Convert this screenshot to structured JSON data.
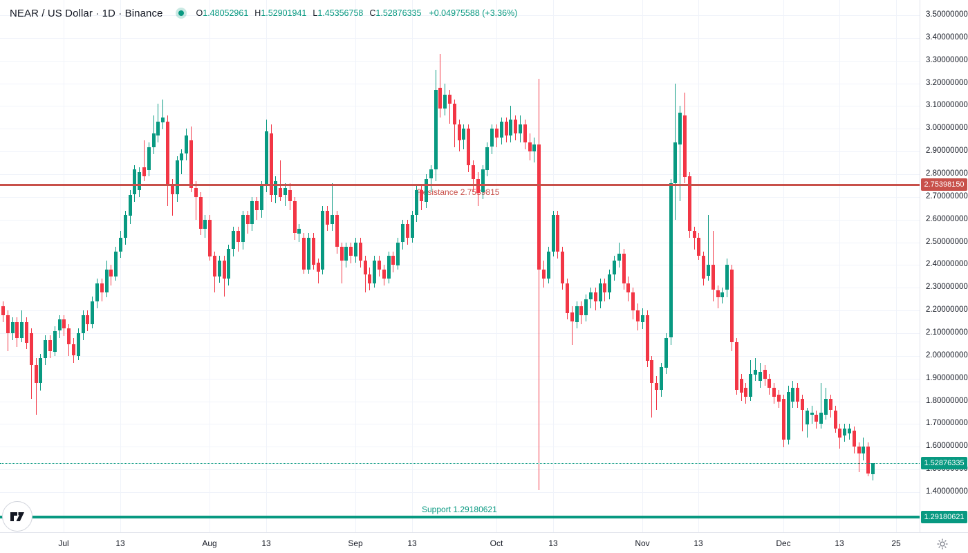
{
  "header": {
    "title": "NEAR / US Dollar · 1D · Binance",
    "ohlc": {
      "o_label": "O",
      "o": "1.48052961",
      "h_label": "H",
      "h": "1.52901941",
      "l_label": "L",
      "l": "1.45356758",
      "c_label": "C",
      "c": "1.52876335",
      "change": "+0.04975588 (+3.36%)"
    }
  },
  "colors": {
    "up": "#089981",
    "down": "#f23645",
    "resistance": "#c8504a",
    "support": "#089981",
    "last_price": "#089981",
    "grid": "#f0f3fa",
    "axis_text": "#131722",
    "icon_gray": "#787b86"
  },
  "chart_data": {
    "type": "candlestick",
    "symbol": "NEAR/USD",
    "interval": "1D",
    "price_axis": {
      "min": 1.4,
      "max": 3.5,
      "step": 0.1,
      "tick_labels": [
        "3.50000000",
        "3.40000000",
        "3.30000000",
        "3.20000000",
        "3.10000000",
        "3.00000000",
        "2.90000000",
        "2.80000000",
        "2.70000000",
        "2.60000000",
        "2.50000000",
        "2.40000000",
        "2.30000000",
        "2.20000000",
        "2.10000000",
        "2.00000000",
        "1.90000000",
        "1.80000000",
        "1.70000000",
        "1.60000000",
        "1.50000000",
        "1.40000000"
      ]
    },
    "time_axis": {
      "ticks": [
        {
          "label": "Jul",
          "idx": 13
        },
        {
          "label": "13",
          "idx": 25
        },
        {
          "label": "Aug",
          "idx": 44
        },
        {
          "label": "13",
          "idx": 56
        },
        {
          "label": "Sep",
          "idx": 75
        },
        {
          "label": "13",
          "idx": 87
        },
        {
          "label": "Oct",
          "idx": 105
        },
        {
          "label": "13",
          "idx": 117
        },
        {
          "label": "Nov",
          "idx": 136
        },
        {
          "label": "13",
          "idx": 148
        },
        {
          "label": "Dec",
          "idx": 166
        },
        {
          "label": "13",
          "idx": 178
        },
        {
          "label": "25",
          "idx": 190
        }
      ]
    },
    "levels": {
      "resistance": {
        "price": 2.7539815,
        "label": "Resistance 2.7539815",
        "badge": "2.75398150"
      },
      "support": {
        "price": 1.29180621,
        "label": "Support 1.29180621",
        "badge": "1.29180621"
      },
      "last_price": {
        "price": 1.52876335,
        "badge": "1.52876335"
      }
    },
    "candles_ohlc": [
      [
        2.22,
        2.24,
        2.15,
        2.18
      ],
      [
        2.18,
        2.2,
        2.02,
        2.1
      ],
      [
        2.1,
        2.17,
        2.07,
        2.15
      ],
      [
        2.15,
        2.17,
        2.04,
        2.08
      ],
      [
        2.08,
        2.2,
        2.06,
        2.15
      ],
      [
        2.15,
        2.17,
        2.03,
        2.06
      ],
      [
        2.1,
        2.12,
        1.81,
        1.96
      ],
      [
        1.96,
        1.99,
        1.74,
        1.88
      ],
      [
        1.88,
        2.01,
        1.85,
        1.99
      ],
      [
        1.99,
        2.09,
        1.96,
        2.07
      ],
      [
        2.07,
        2.09,
        1.99,
        2.02
      ],
      [
        2.02,
        2.13,
        2.0,
        2.11
      ],
      [
        2.11,
        2.18,
        2.08,
        2.16
      ],
      [
        2.16,
        2.18,
        2.09,
        2.12
      ],
      [
        2.12,
        2.14,
        2.0,
        2.05
      ],
      [
        2.05,
        2.08,
        1.97,
        2.0
      ],
      [
        2.0,
        2.12,
        1.98,
        2.1
      ],
      [
        2.1,
        2.2,
        2.07,
        2.18
      ],
      [
        2.18,
        2.2,
        2.11,
        2.14
      ],
      [
        2.14,
        2.26,
        2.12,
        2.24
      ],
      [
        2.24,
        2.34,
        2.21,
        2.32
      ],
      [
        2.32,
        2.34,
        2.24,
        2.28
      ],
      [
        2.28,
        2.42,
        2.26,
        2.38
      ],
      [
        2.38,
        2.4,
        2.31,
        2.35
      ],
      [
        2.35,
        2.48,
        2.33,
        2.46
      ],
      [
        2.46,
        2.55,
        2.43,
        2.52
      ],
      [
        2.52,
        2.64,
        2.49,
        2.62
      ],
      [
        2.62,
        2.73,
        2.58,
        2.71
      ],
      [
        2.71,
        2.84,
        2.68,
        2.82
      ],
      [
        2.73,
        2.83,
        2.7,
        2.81
      ],
      [
        2.83,
        2.95,
        2.77,
        2.79
      ],
      [
        2.82,
        2.94,
        2.79,
        2.92
      ],
      [
        2.92,
        3.06,
        2.89,
        2.98
      ],
      [
        2.97,
        3.11,
        2.94,
        3.03
      ],
      [
        3.03,
        3.13,
        3.0,
        3.05
      ],
      [
        3.03,
        3.06,
        2.66,
        2.75
      ],
      [
        2.75,
        2.78,
        2.62,
        2.71
      ],
      [
        2.71,
        2.88,
        2.68,
        2.86
      ],
      [
        2.86,
        2.91,
        2.8,
        2.89
      ],
      [
        2.89,
        3.0,
        2.86,
        2.97
      ],
      [
        2.95,
        3.01,
        2.72,
        2.74
      ],
      [
        2.74,
        2.77,
        2.6,
        2.7
      ],
      [
        2.7,
        2.72,
        2.53,
        2.56
      ],
      [
        2.56,
        2.62,
        2.52,
        2.6
      ],
      [
        2.6,
        2.62,
        2.42,
        2.44
      ],
      [
        2.44,
        2.46,
        2.28,
        2.35
      ],
      [
        2.35,
        2.44,
        2.32,
        2.42
      ],
      [
        2.42,
        2.44,
        2.26,
        2.34
      ],
      [
        2.34,
        2.49,
        2.31,
        2.47
      ],
      [
        2.47,
        2.57,
        2.44,
        2.55
      ],
      [
        2.55,
        2.57,
        2.46,
        2.5
      ],
      [
        2.5,
        2.64,
        2.47,
        2.62
      ],
      [
        2.62,
        2.64,
        2.54,
        2.58
      ],
      [
        2.58,
        2.7,
        2.55,
        2.68
      ],
      [
        2.68,
        2.7,
        2.6,
        2.64
      ],
      [
        2.64,
        2.77,
        2.61,
        2.75
      ],
      [
        2.75,
        3.04,
        2.72,
        2.99
      ],
      [
        2.98,
        3.02,
        2.68,
        2.71
      ],
      [
        2.71,
        2.79,
        2.67,
        2.77
      ],
      [
        2.74,
        2.86,
        2.68,
        2.7
      ],
      [
        2.71,
        2.76,
        2.66,
        2.74
      ],
      [
        2.73,
        2.76,
        2.64,
        2.68
      ],
      [
        2.68,
        2.7,
        2.51,
        2.54
      ],
      [
        2.54,
        2.58,
        2.5,
        2.56
      ],
      [
        2.52,
        2.54,
        2.36,
        2.38
      ],
      [
        2.38,
        2.54,
        2.36,
        2.52
      ],
      [
        2.52,
        2.54,
        2.38,
        2.4
      ],
      [
        2.41,
        2.43,
        2.32,
        2.37
      ],
      [
        2.38,
        2.66,
        2.36,
        2.64
      ],
      [
        2.64,
        2.66,
        2.55,
        2.58
      ],
      [
        2.58,
        2.76,
        2.55,
        2.62
      ],
      [
        2.62,
        2.64,
        2.45,
        2.48
      ],
      [
        2.48,
        2.5,
        2.32,
        2.42
      ],
      [
        2.42,
        2.5,
        2.39,
        2.48
      ],
      [
        2.48,
        2.5,
        2.41,
        2.44
      ],
      [
        2.44,
        2.52,
        2.41,
        2.5
      ],
      [
        2.5,
        2.52,
        2.39,
        2.42
      ],
      [
        2.42,
        2.44,
        2.28,
        2.36
      ],
      [
        2.36,
        2.39,
        2.29,
        2.32
      ],
      [
        2.32,
        2.44,
        2.3,
        2.42
      ],
      [
        2.42,
        2.44,
        2.35,
        2.38
      ],
      [
        2.38,
        2.4,
        2.31,
        2.34
      ],
      [
        2.34,
        2.46,
        2.32,
        2.44
      ],
      [
        2.44,
        2.46,
        2.37,
        2.4
      ],
      [
        2.4,
        2.52,
        2.38,
        2.5
      ],
      [
        2.5,
        2.6,
        2.47,
        2.58
      ],
      [
        2.58,
        2.6,
        2.49,
        2.52
      ],
      [
        2.52,
        2.64,
        2.5,
        2.62
      ],
      [
        2.62,
        2.75,
        2.59,
        2.73
      ],
      [
        2.73,
        2.75,
        2.64,
        2.68
      ],
      [
        2.68,
        2.8,
        2.65,
        2.78
      ],
      [
        2.78,
        2.84,
        2.72,
        2.82
      ],
      [
        2.82,
        3.26,
        2.77,
        3.17
      ],
      [
        3.18,
        3.33,
        3.05,
        3.09
      ],
      [
        3.09,
        3.2,
        3.06,
        3.15
      ],
      [
        3.15,
        3.17,
        3.02,
        3.11
      ],
      [
        3.11,
        3.13,
        2.92,
        3.02
      ],
      [
        3.02,
        3.04,
        2.9,
        2.95
      ],
      [
        2.95,
        3.02,
        2.91,
        3.0
      ],
      [
        3.0,
        3.02,
        2.81,
        2.84
      ],
      [
        2.84,
        2.86,
        2.72,
        2.78
      ],
      [
        2.78,
        2.81,
        2.66,
        2.72
      ],
      [
        2.72,
        2.84,
        2.69,
        2.82
      ],
      [
        2.82,
        2.94,
        2.79,
        2.92
      ],
      [
        2.92,
        3.02,
        2.89,
        3.0
      ],
      [
        3.0,
        3.02,
        2.92,
        2.96
      ],
      [
        2.96,
        3.05,
        2.93,
        3.03
      ],
      [
        3.03,
        3.05,
        2.94,
        2.97
      ],
      [
        2.97,
        3.1,
        2.94,
        3.04
      ],
      [
        3.04,
        3.06,
        2.95,
        2.98
      ],
      [
        2.98,
        3.06,
        2.94,
        3.02
      ],
      [
        3.02,
        3.04,
        2.91,
        2.94
      ],
      [
        2.94,
        2.98,
        2.86,
        2.9
      ],
      [
        2.9,
        2.96,
        2.85,
        2.93
      ],
      [
        2.93,
        3.22,
        1.41,
        2.38
      ],
      [
        2.38,
        2.42,
        2.3,
        2.34
      ],
      [
        2.34,
        2.48,
        2.32,
        2.46
      ],
      [
        2.46,
        2.64,
        2.44,
        2.62
      ],
      [
        2.62,
        2.64,
        2.43,
        2.46
      ],
      [
        2.46,
        2.48,
        2.29,
        2.32
      ],
      [
        2.32,
        2.34,
        2.16,
        2.19
      ],
      [
        2.19,
        2.22,
        2.05,
        2.15
      ],
      [
        2.15,
        2.24,
        2.12,
        2.22
      ],
      [
        2.22,
        2.24,
        2.14,
        2.18
      ],
      [
        2.18,
        2.27,
        2.15,
        2.25
      ],
      [
        2.25,
        2.3,
        2.21,
        2.28
      ],
      [
        2.28,
        2.3,
        2.2,
        2.24
      ],
      [
        2.24,
        2.34,
        2.21,
        2.32
      ],
      [
        2.32,
        2.34,
        2.24,
        2.28
      ],
      [
        2.28,
        2.38,
        2.25,
        2.36
      ],
      [
        2.36,
        2.44,
        2.33,
        2.42
      ],
      [
        2.42,
        2.5,
        2.39,
        2.45
      ],
      [
        2.45,
        2.47,
        2.29,
        2.32
      ],
      [
        2.32,
        2.35,
        2.24,
        2.28
      ],
      [
        2.28,
        2.3,
        2.16,
        2.2
      ],
      [
        2.2,
        2.23,
        2.11,
        2.15
      ],
      [
        2.15,
        2.21,
        2.12,
        2.18
      ],
      [
        2.18,
        2.2,
        1.95,
        1.98
      ],
      [
        1.98,
        2.0,
        1.73,
        1.88
      ],
      [
        1.88,
        1.91,
        1.76,
        1.85
      ],
      [
        1.85,
        1.97,
        1.82,
        1.95
      ],
      [
        1.95,
        2.1,
        1.92,
        2.08
      ],
      [
        2.08,
        2.78,
        2.05,
        2.76
      ],
      [
        2.76,
        3.2,
        2.6,
        2.94
      ],
      [
        2.93,
        3.1,
        2.68,
        3.07
      ],
      [
        3.06,
        3.16,
        2.76,
        2.79
      ],
      [
        2.79,
        2.81,
        2.52,
        2.55
      ],
      [
        2.55,
        2.57,
        2.47,
        2.52
      ],
      [
        2.52,
        2.54,
        2.42,
        2.44
      ],
      [
        2.44,
        2.46,
        2.31,
        2.34
      ],
      [
        2.35,
        2.62,
        2.33,
        2.4
      ],
      [
        2.4,
        2.55,
        2.24,
        2.29
      ],
      [
        2.29,
        2.31,
        2.21,
        2.26
      ],
      [
        2.26,
        2.3,
        2.23,
        2.28
      ],
      [
        2.29,
        2.43,
        2.26,
        2.4
      ],
      [
        2.38,
        2.4,
        2.02,
        2.06
      ],
      [
        2.06,
        2.08,
        1.83,
        1.85
      ],
      [
        1.9,
        1.92,
        1.8,
        1.84
      ],
      [
        1.86,
        1.88,
        1.79,
        1.82
      ],
      [
        1.82,
        1.98,
        1.8,
        1.92
      ],
      [
        1.92,
        1.99,
        1.89,
        1.94
      ],
      [
        1.89,
        1.97,
        1.86,
        1.93
      ],
      [
        1.94,
        1.96,
        1.87,
        1.9
      ],
      [
        1.9,
        1.92,
        1.83,
        1.86
      ],
      [
        1.86,
        1.88,
        1.79,
        1.82
      ],
      [
        1.83,
        1.85,
        1.77,
        1.8
      ],
      [
        1.81,
        1.83,
        1.6,
        1.63
      ],
      [
        1.63,
        1.87,
        1.61,
        1.84
      ],
      [
        1.8,
        1.89,
        1.77,
        1.86
      ],
      [
        1.86,
        1.88,
        1.77,
        1.8
      ],
      [
        1.81,
        1.83,
        1.67,
        1.76
      ],
      [
        1.7,
        1.77,
        1.64,
        1.76
      ],
      [
        1.74,
        1.78,
        1.7,
        1.75
      ],
      [
        1.74,
        1.76,
        1.68,
        1.71
      ],
      [
        1.7,
        1.88,
        1.68,
        1.75
      ],
      [
        1.74,
        1.86,
        1.72,
        1.81
      ],
      [
        1.81,
        1.83,
        1.73,
        1.76
      ],
      [
        1.76,
        1.78,
        1.66,
        1.68
      ],
      [
        1.68,
        1.7,
        1.59,
        1.64
      ],
      [
        1.65,
        1.7,
        1.62,
        1.68
      ],
      [
        1.66,
        1.7,
        1.63,
        1.68
      ],
      [
        1.67,
        1.69,
        1.57,
        1.6
      ],
      [
        1.6,
        1.62,
        1.49,
        1.57
      ],
      [
        1.57,
        1.64,
        1.54,
        1.6
      ],
      [
        1.6,
        1.62,
        1.47,
        1.48
      ],
      [
        1.4805,
        1.529,
        1.4536,
        1.5288
      ]
    ]
  },
  "icons": {
    "tv_logo": "tradingview-logo",
    "axis_settings": "gear-icon"
  }
}
